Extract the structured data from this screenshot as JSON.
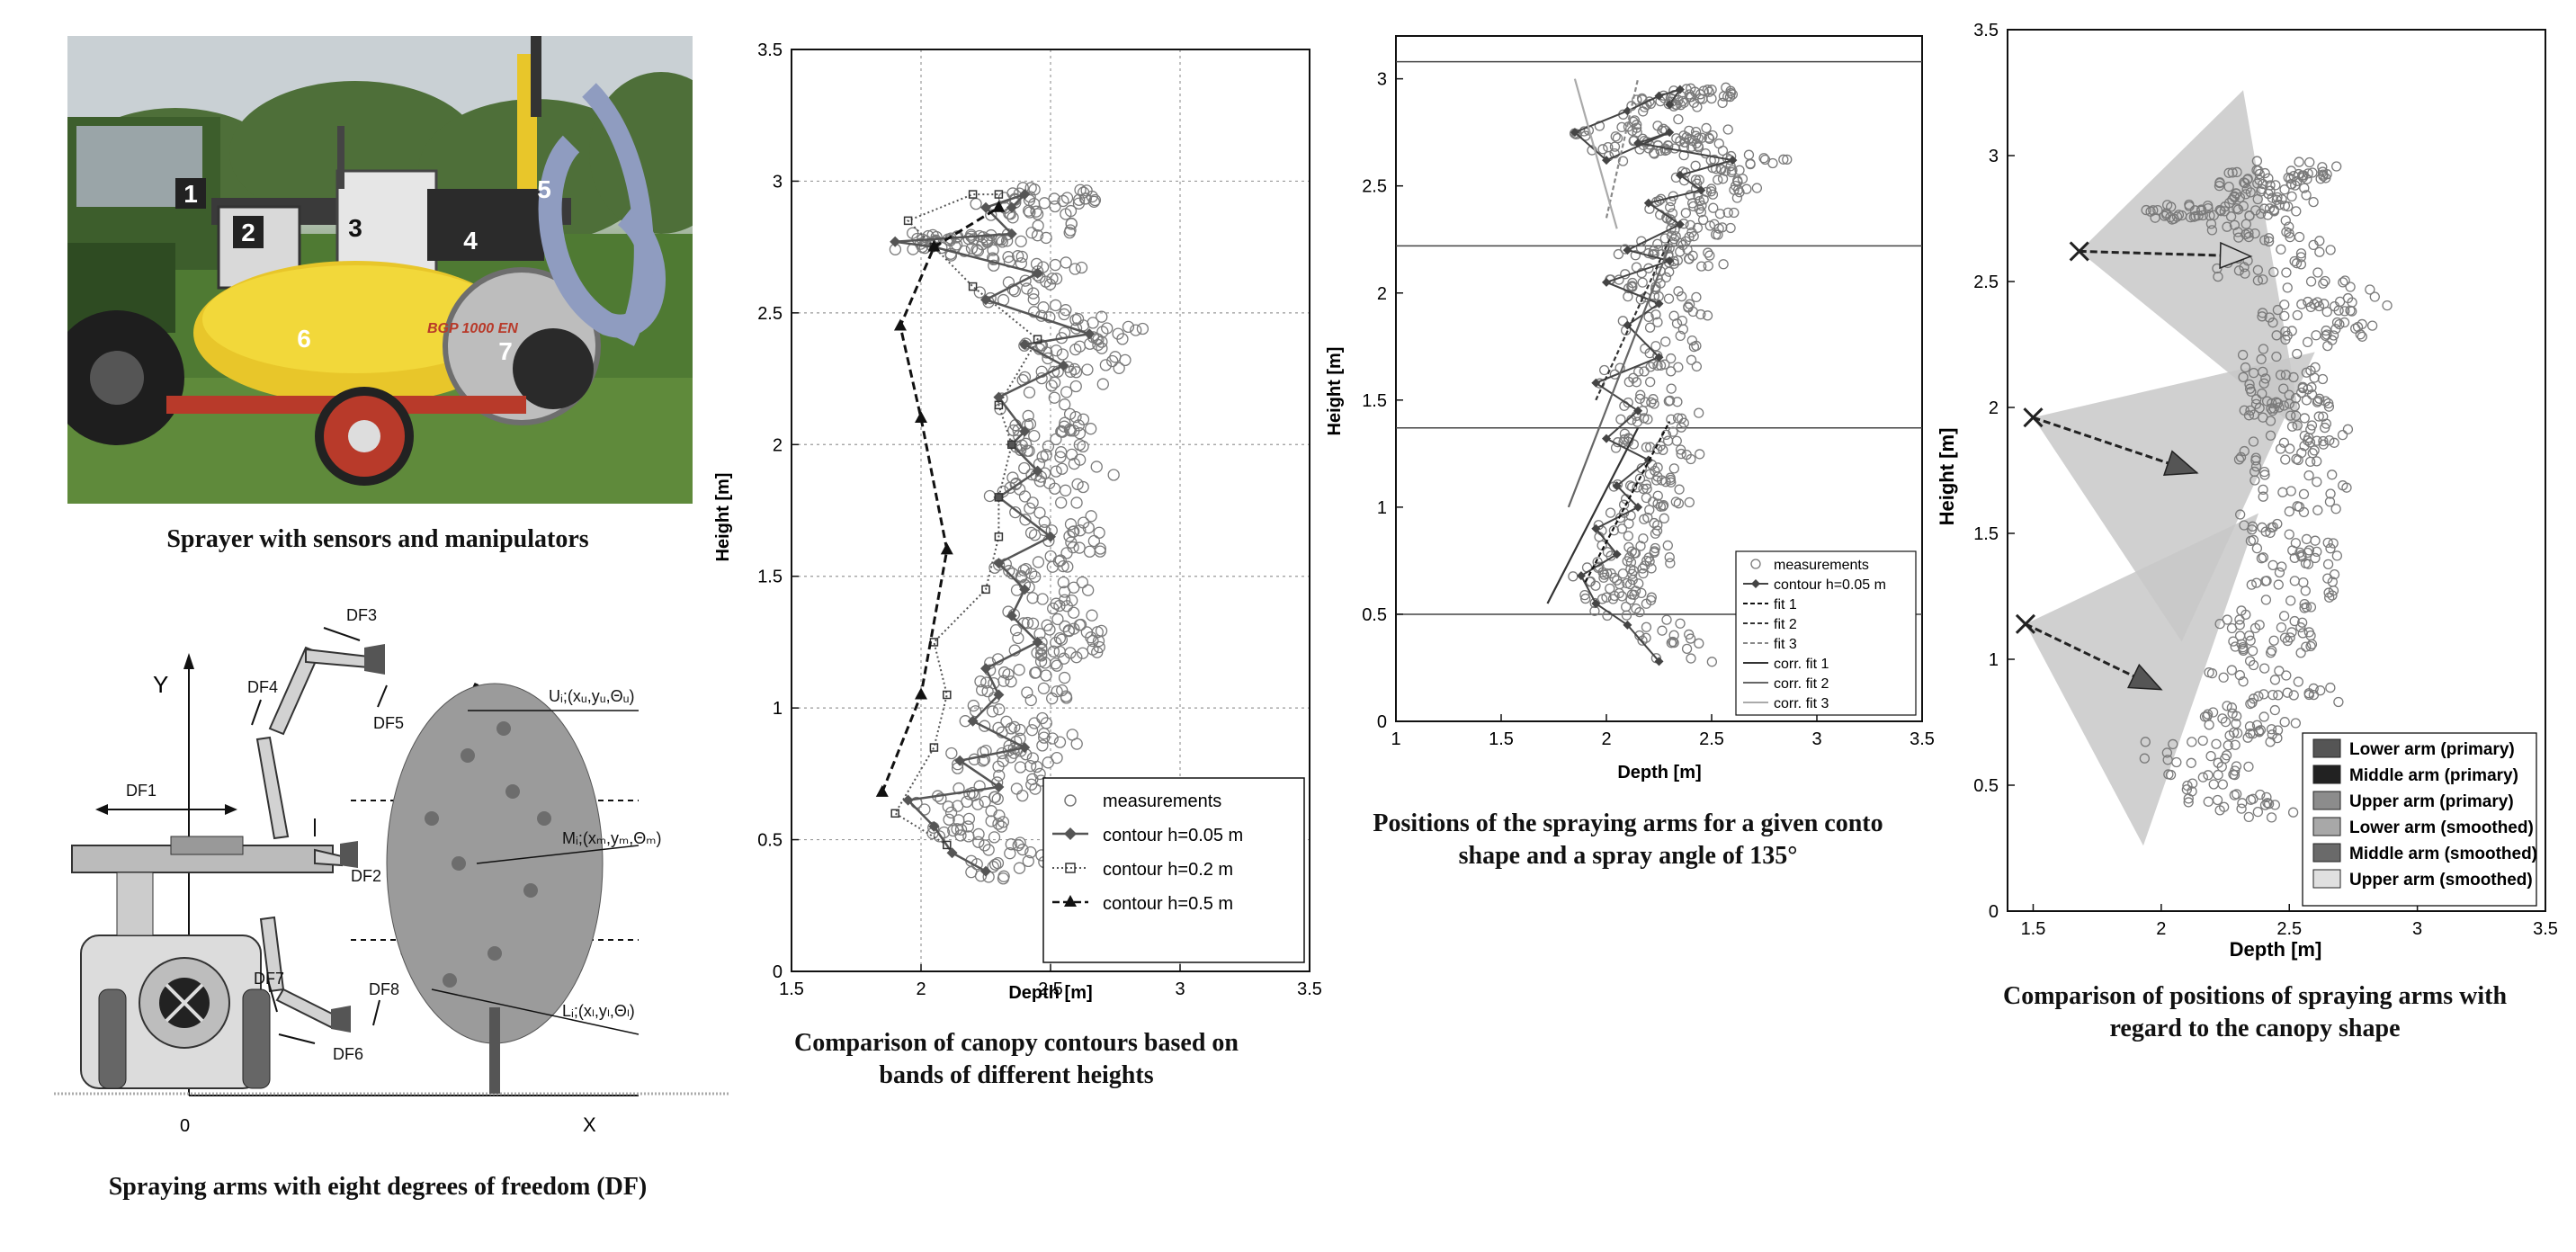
{
  "photo": {
    "labels": [
      "1",
      "2",
      "3",
      "4",
      "5",
      "6",
      "7"
    ],
    "tank_text": "BGP 1000 EN"
  },
  "captions": {
    "photo": "Sprayer with sensors and manipulators",
    "arms": "Spraying arms with eight degrees of freedom (DF)",
    "chart1": [
      "Comparison of canopy contours based on",
      "bands of different heights"
    ],
    "chart2": [
      "Positions of the spraying arms for a given conto",
      "shape and a spray angle of 135°"
    ],
    "chart3": [
      "Comparison of positions of spraying arms with",
      "regard to the canopy shape"
    ]
  },
  "diagram": {
    "axis_y": "Y",
    "axis_x": "X",
    "origin": "0",
    "dof": [
      "DF1",
      "DF2",
      "DF3",
      "DF4",
      "DF5",
      "DF6",
      "DF7",
      "DF8"
    ],
    "points": [
      "U",
      "M",
      "L"
    ]
  },
  "colors": {
    "points": "#7a7a7a",
    "line": "#444444",
    "fill_light": "#c8c8c8"
  },
  "chart_data": [
    {
      "type": "scatter",
      "xlabel": "Depth [m]",
      "ylabel": "Height [m]",
      "xlim": [
        1.5,
        3.5
      ],
      "ylim": [
        0,
        3.5
      ],
      "xticks": [
        "1.5",
        "2",
        "2.5",
        "3",
        "3.5"
      ],
      "yticks": [
        "0",
        "0.5",
        "1",
        "1.5",
        "2",
        "2.5",
        "3",
        "3.5"
      ],
      "grid": true,
      "legend_position": "bottom-right",
      "series": [
        {
          "name": "measurements",
          "marker": "circle"
        },
        {
          "name": "contour h=0.05 m",
          "marker": "diamond",
          "x": [
            2.25,
            2.12,
            2.05,
            1.95,
            2.3,
            2.15,
            2.4,
            2.2,
            2.3,
            2.25,
            2.45,
            2.35,
            2.4,
            2.3,
            2.5,
            2.3,
            2.45,
            2.35,
            2.4,
            2.3,
            2.55,
            2.4,
            2.65,
            2.25,
            2.45,
            2.05,
            1.9,
            2.35,
            2.25,
            2.4,
            2.35
          ],
          "y": [
            0.38,
            0.45,
            0.55,
            0.65,
            0.7,
            0.8,
            0.85,
            0.95,
            1.05,
            1.15,
            1.25,
            1.35,
            1.45,
            1.55,
            1.65,
            1.8,
            1.9,
            2.0,
            2.05,
            2.18,
            2.3,
            2.38,
            2.42,
            2.55,
            2.65,
            2.75,
            2.77,
            2.8,
            2.9,
            2.95,
            2.9
          ]
        },
        {
          "name": "contour h=0.2 m",
          "marker": "square",
          "x": [
            2.1,
            1.9,
            2.05,
            2.1,
            2.05,
            2.25,
            2.3,
            2.3,
            2.35,
            2.3,
            2.45,
            2.2,
            2.05,
            1.95,
            2.2,
            2.3
          ],
          "y": [
            0.48,
            0.6,
            0.85,
            1.05,
            1.25,
            1.45,
            1.65,
            1.8,
            2.0,
            2.15,
            2.4,
            2.6,
            2.75,
            2.85,
            2.95,
            2.95
          ]
        },
        {
          "name": "contour h=0.5 m",
          "marker": "triangle",
          "x": [
            1.85,
            2.0,
            2.1,
            2.0,
            1.92,
            2.05,
            2.3
          ],
          "y": [
            0.68,
            1.05,
            1.6,
            2.1,
            2.45,
            2.75,
            2.9
          ]
        }
      ]
    },
    {
      "type": "scatter",
      "xlabel": "Depth [m]",
      "ylabel": "Height [m]",
      "xlim": [
        1,
        3.5
      ],
      "ylim": [
        0,
        3.2
      ],
      "xticks": [
        "1",
        "1.5",
        "2",
        "2.5",
        "3",
        "3.5"
      ],
      "yticks": [
        "0",
        "0.5",
        "1",
        "1.5",
        "2",
        "2.5",
        "3"
      ],
      "grid": false,
      "legend_position": "bottom-right",
      "band_heights": [
        0.5,
        1.37,
        2.22,
        3.08
      ],
      "series": [
        {
          "name": "measurements",
          "marker": "circle"
        },
        {
          "name": "contour h=0.05 m",
          "marker": "diamond",
          "x": [
            2.25,
            2.1,
            1.95,
            1.88,
            2.05,
            1.95,
            2.15,
            2.05,
            2.2,
            2.0,
            2.15,
            1.95,
            2.25,
            2.1,
            2.25,
            2.0,
            2.3,
            2.1,
            2.35,
            2.2,
            2.45,
            2.35,
            2.6,
            2.15,
            2.3,
            2.0,
            1.85,
            2.1,
            2.25,
            2.35,
            2.3
          ],
          "y": [
            0.28,
            0.45,
            0.55,
            0.68,
            0.78,
            0.9,
            1.0,
            1.1,
            1.22,
            1.32,
            1.45,
            1.58,
            1.7,
            1.85,
            1.95,
            2.05,
            2.15,
            2.2,
            2.32,
            2.42,
            2.48,
            2.55,
            2.62,
            2.7,
            2.75,
            2.62,
            2.75,
            2.85,
            2.92,
            2.95,
            2.88
          ]
        },
        {
          "name": "fit 1",
          "style": "dashed",
          "x": [
            1.9,
            2.3
          ],
          "y": [
            0.65,
            1.4
          ]
        },
        {
          "name": "fit 2",
          "style": "dashed",
          "x": [
            1.95,
            2.3
          ],
          "y": [
            1.5,
            2.25
          ]
        },
        {
          "name": "fit 3",
          "style": "dashed",
          "x": [
            2.0,
            2.15
          ],
          "y": [
            2.35,
            3.0
          ]
        },
        {
          "name": "corr. fit 1",
          "style": "solid",
          "x": [
            1.72,
            2.15
          ],
          "y": [
            0.55,
            1.37
          ]
        },
        {
          "name": "corr. fit 2",
          "style": "solid",
          "x": [
            1.82,
            2.3
          ],
          "y": [
            1.0,
            2.22
          ]
        },
        {
          "name": "corr. fit 3",
          "style": "solid",
          "x": [
            1.85,
            2.05
          ],
          "y": [
            3.0,
            2.3
          ]
        }
      ]
    },
    {
      "type": "scatter",
      "xlabel": "Depth [m]",
      "ylabel": "Height [m]",
      "xlim": [
        1.4,
        3.5
      ],
      "ylim": [
        0,
        3.5
      ],
      "xticks": [
        "1.5",
        "2",
        "2.5",
        "3",
        "3.5"
      ],
      "yticks": [
        "0",
        "0.5",
        "1",
        "1.5",
        "2",
        "2.5",
        "3",
        "3.5"
      ],
      "grid": false,
      "legend_position": "bottom-right",
      "series": [
        {
          "name": "Lower arm (primary)",
          "fill": "#555555"
        },
        {
          "name": "Middle arm (primary)",
          "fill": "#222222"
        },
        {
          "name": "Upper arm (primary)",
          "fill": "#8c8c8c"
        },
        {
          "name": "Lower arm (smoothed)",
          "fill": "#a8a8a8"
        },
        {
          "name": "Middle arm (smoothed)",
          "fill": "#6a6a6a"
        },
        {
          "name": "Upper arm (smoothed)",
          "fill": "#e0e0e0"
        }
      ],
      "arms": [
        {
          "origin": [
            1.47,
            1.14
          ],
          "tip": [
            2.0,
            0.88
          ],
          "cone": [
            [
              1.47,
              1.14
            ],
            [
              2.38,
              1.58
            ],
            [
              1.93,
              0.26
            ]
          ]
        },
        {
          "origin": [
            1.5,
            1.96
          ],
          "tip": [
            2.14,
            1.74
          ],
          "cone": [
            [
              1.5,
              1.96
            ],
            [
              2.6,
              2.22
            ],
            [
              2.08,
              1.07
            ]
          ]
        },
        {
          "origin": [
            1.68,
            2.62
          ],
          "tip": [
            2.35,
            2.6
          ],
          "cone": [
            [
              1.68,
              2.62
            ],
            [
              2.32,
              3.26
            ],
            [
              2.55,
              1.9
            ]
          ]
        }
      ]
    }
  ]
}
